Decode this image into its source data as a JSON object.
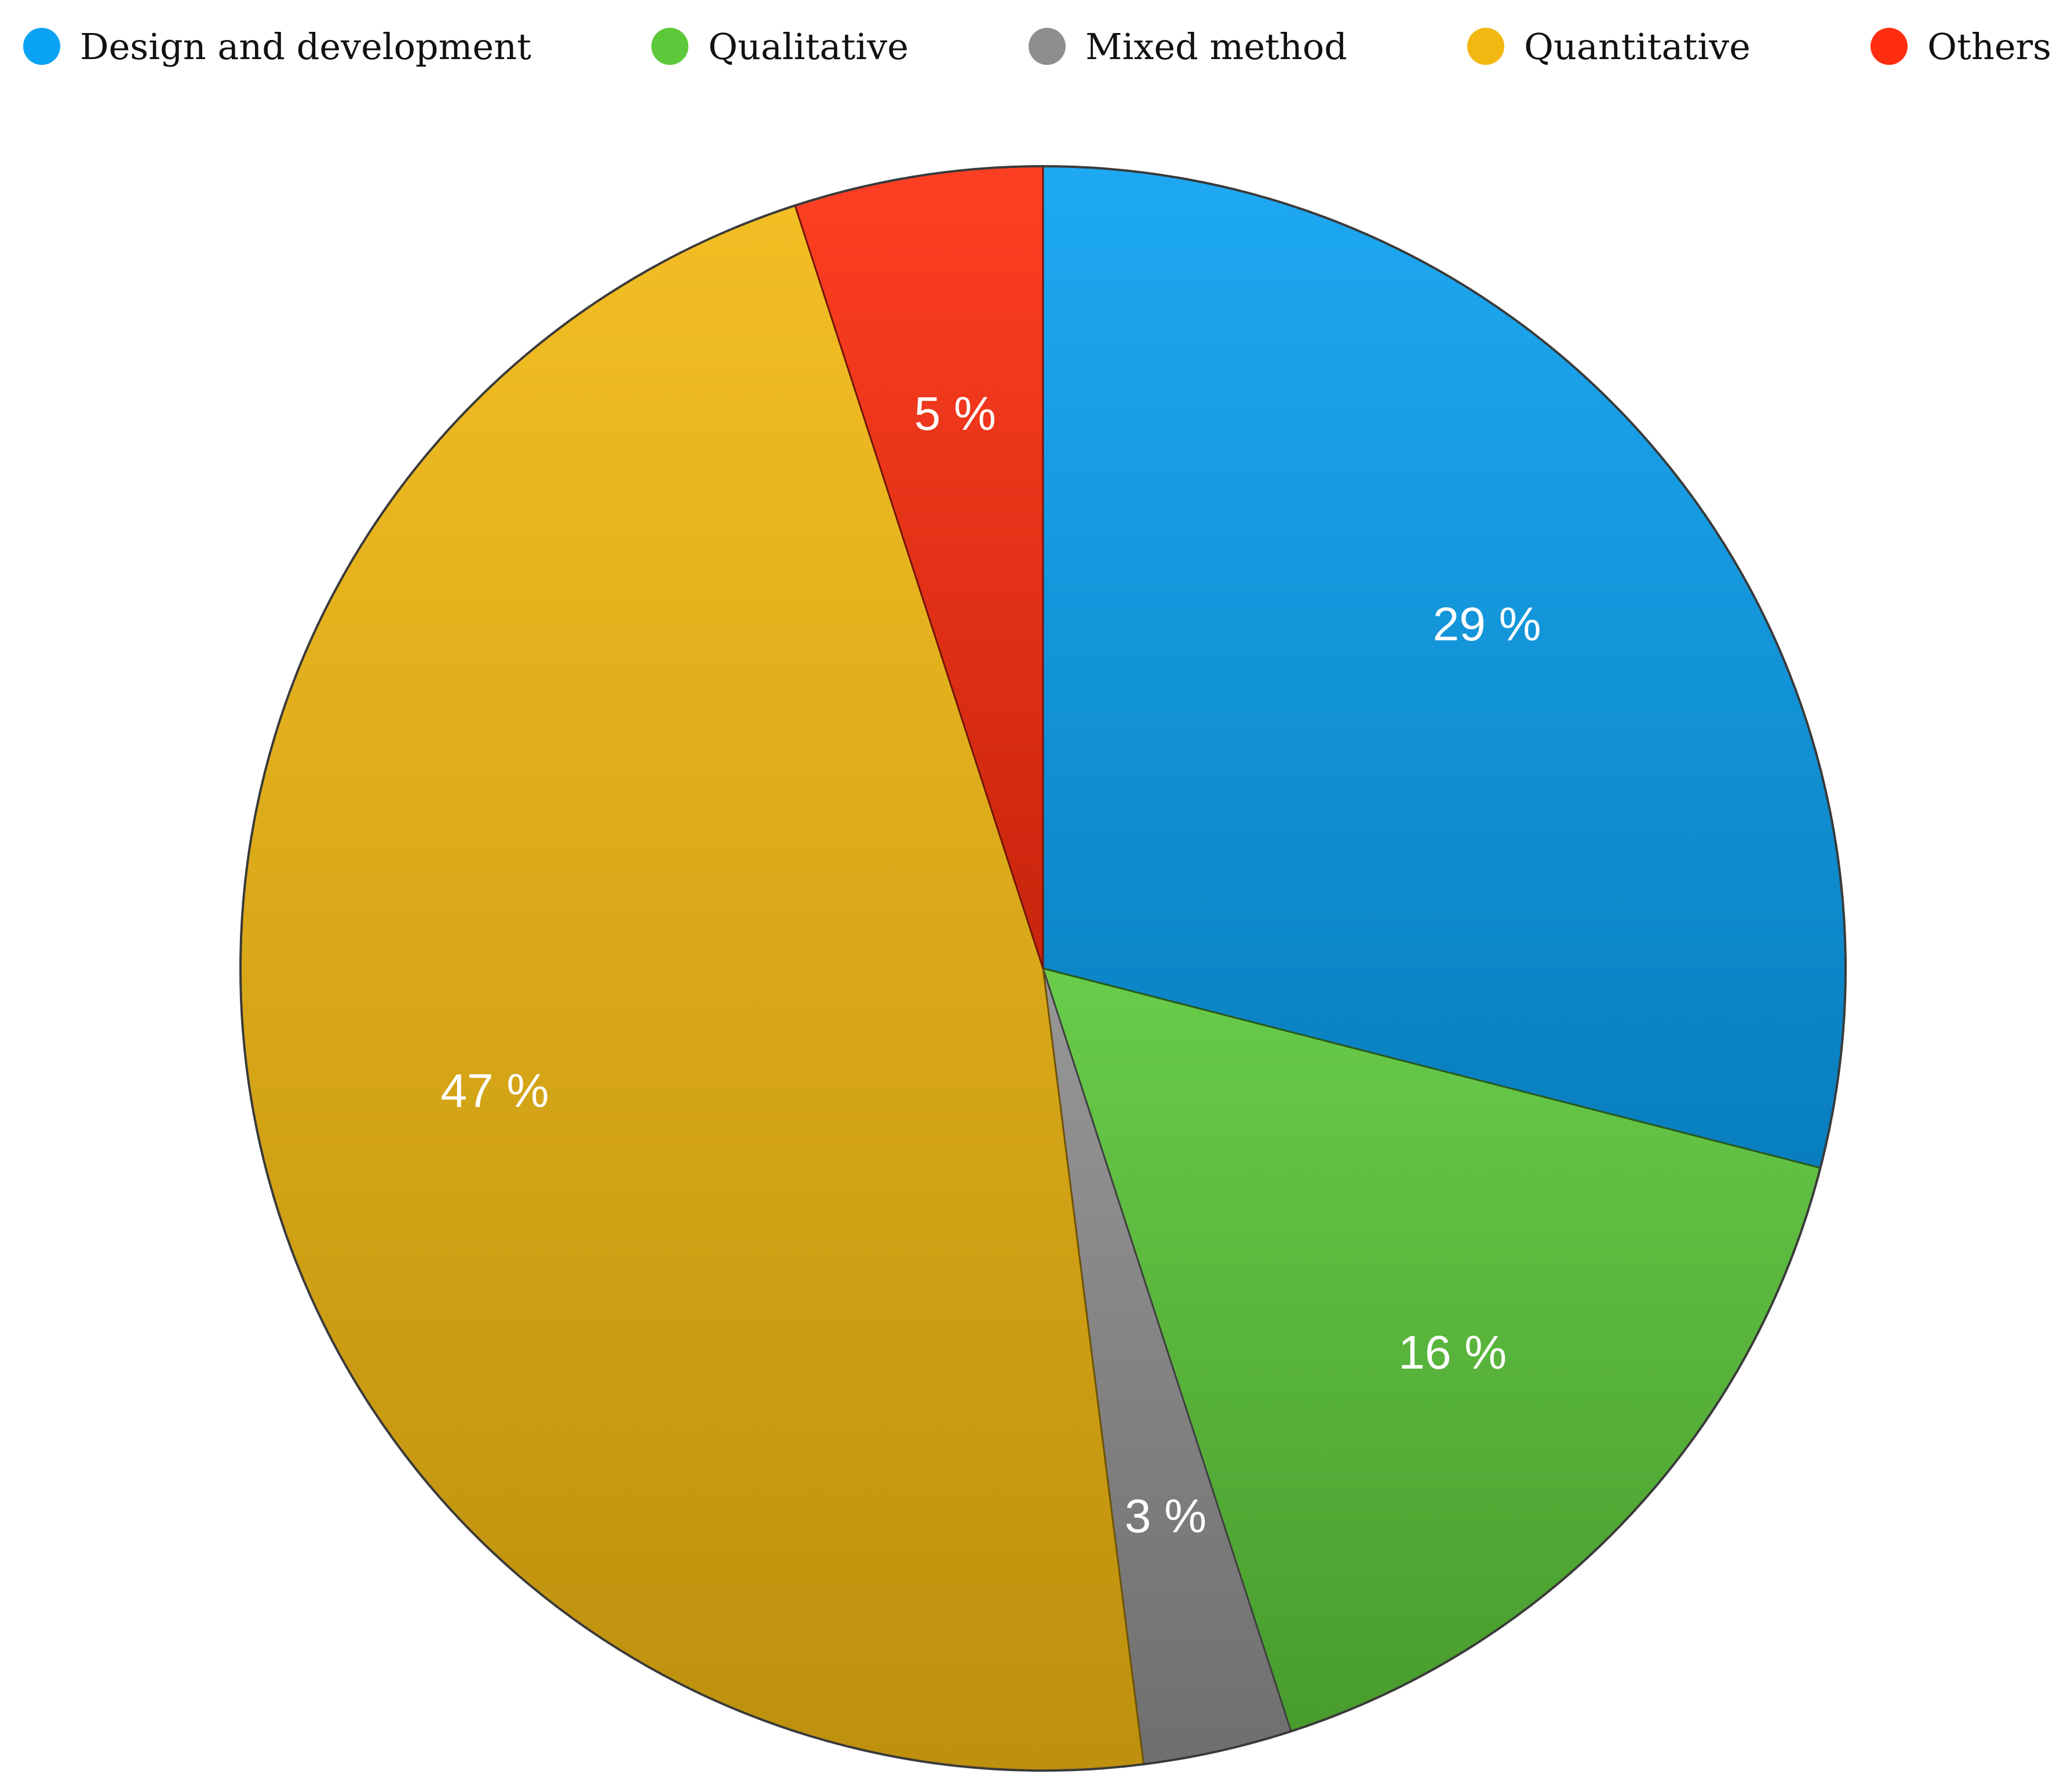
{
  "chart_data": {
    "type": "pie",
    "title": "",
    "slices": [
      {
        "label": "Design and development",
        "value": 29,
        "value_text": "29 %",
        "color": "#0aa2f2"
      },
      {
        "label": "Qualitative",
        "value": 16,
        "value_text": "16 %",
        "color": "#5cc83a"
      },
      {
        "label": "Mixed method",
        "value": 3,
        "value_text": "3 %",
        "color": "#8e8e8e"
      },
      {
        "label": "Quantitative",
        "value": 47,
        "value_text": "47 %",
        "color": "#f2b811"
      },
      {
        "label": "Others",
        "value": 5,
        "value_text": "5 %",
        "color": "#ff2e10"
      }
    ],
    "legend_position": "top",
    "start": "12 o'clock",
    "direction": "clockwise"
  }
}
